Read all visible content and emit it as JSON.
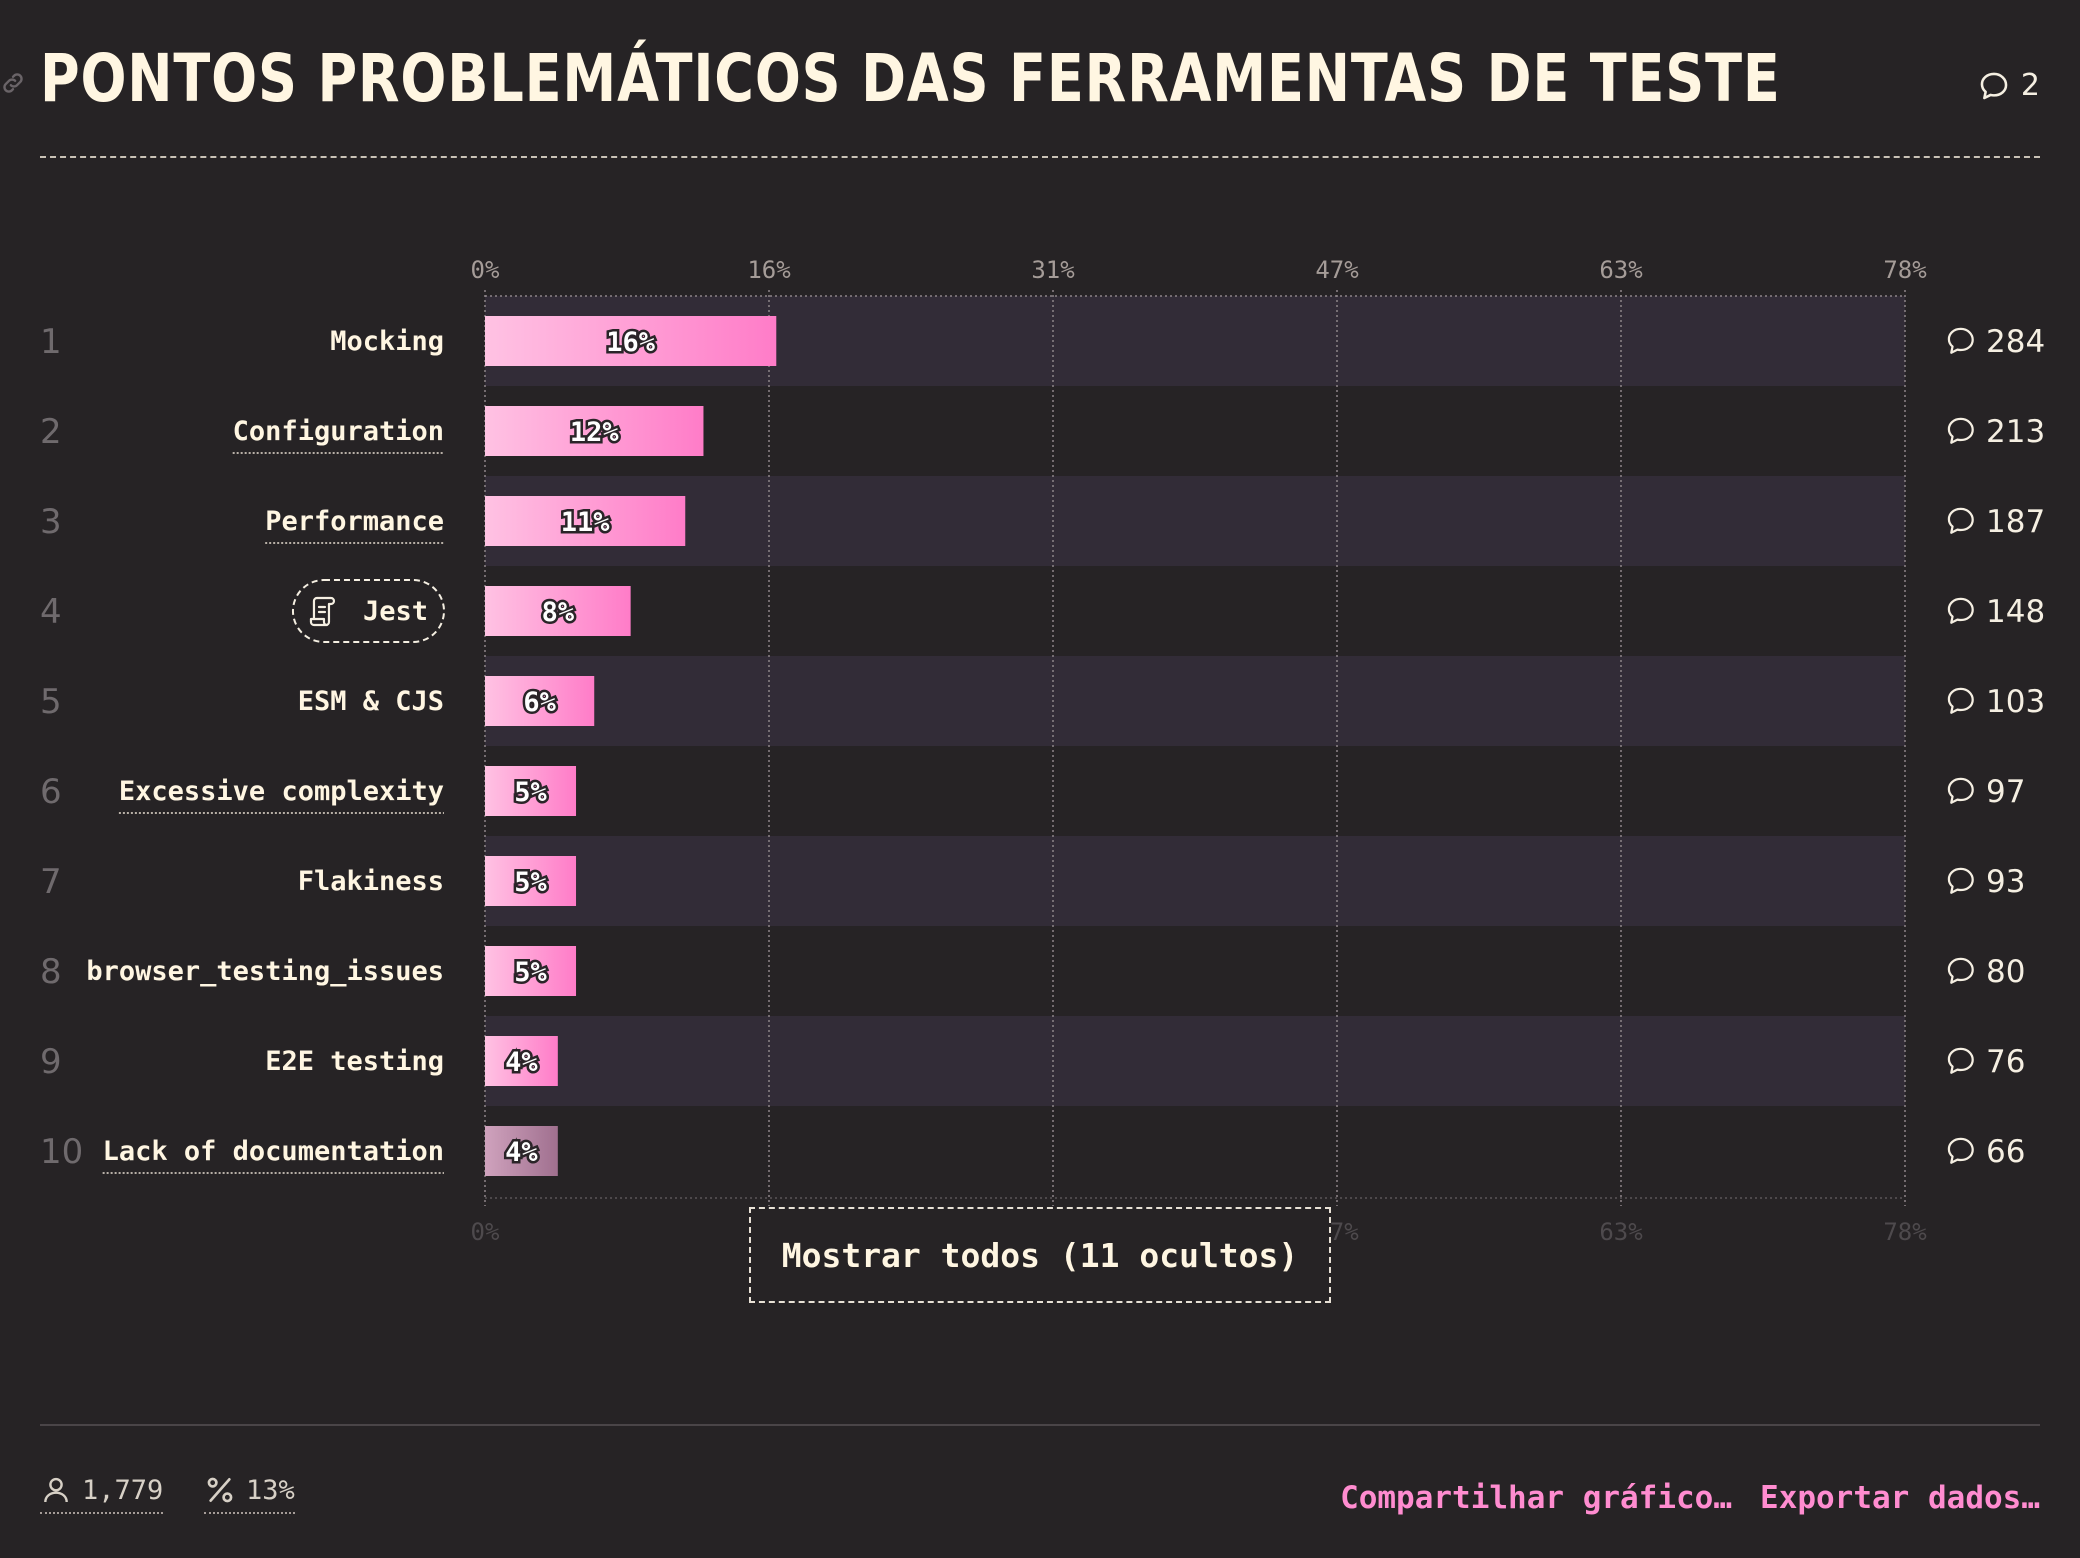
{
  "header": {
    "title": "PONTOS PROBLEMÁTICOS DAS FERRAMENTAS DE TESTE",
    "comment_count": "2"
  },
  "chart_data": {
    "type": "bar",
    "orientation": "horizontal",
    "xlim": [
      0,
      78
    ],
    "x_ticks": [
      "0%",
      "16%",
      "31%",
      "47%",
      "63%",
      "78%"
    ],
    "x_tick_values": [
      0,
      15.6,
      31.2,
      46.8,
      62.4,
      78
    ],
    "grid": true,
    "rows": [
      {
        "rank": "1",
        "label": "Mocking",
        "value": 16,
        "value_label": "16%",
        "comments": "284",
        "underlined": false,
        "pill": false
      },
      {
        "rank": "2",
        "label": "Configuration",
        "value": 12,
        "value_label": "12%",
        "comments": "213",
        "underlined": true,
        "pill": false
      },
      {
        "rank": "3",
        "label": "Performance",
        "value": 11,
        "value_label": "11%",
        "comments": "187",
        "underlined": true,
        "pill": false
      },
      {
        "rank": "4",
        "label": "Jest",
        "value": 8,
        "value_label": "8%",
        "comments": "148",
        "underlined": false,
        "pill": true
      },
      {
        "rank": "5",
        "label": "ESM & CJS",
        "value": 6,
        "value_label": "6%",
        "comments": "103",
        "underlined": false,
        "pill": false
      },
      {
        "rank": "6",
        "label": "Excessive complexity",
        "value": 5,
        "value_label": "5%",
        "comments": "97",
        "underlined": true,
        "pill": false
      },
      {
        "rank": "7",
        "label": "Flakiness",
        "value": 5,
        "value_label": "5%",
        "comments": "93",
        "underlined": false,
        "pill": false
      },
      {
        "rank": "8",
        "label": "browser_testing_issues",
        "value": 5,
        "value_label": "5%",
        "comments": "80",
        "underlined": false,
        "pill": false
      },
      {
        "rank": "9",
        "label": "E2E testing",
        "value": 4,
        "value_label": "4%",
        "comments": "76",
        "underlined": false,
        "pill": false
      },
      {
        "rank": "10",
        "label": "Lack of documentation",
        "value": 4,
        "value_label": "4%",
        "comments": "66",
        "underlined": true,
        "pill": false,
        "muted": true
      }
    ],
    "colors": {
      "bar_start": "#ffc2e3",
      "bar_end": "#ff7cc8",
      "bar_muted_start": "#cfa2bd",
      "bar_muted_end": "#a0708f",
      "row_band": "#322c37",
      "grid": "#8d8589"
    }
  },
  "show_all_label": "Mostrar todos (11 ocultos)",
  "footer": {
    "respondents": "1,779",
    "percent": "13%",
    "share_label": "Compartilhar gráfico…",
    "export_label": "Exportar dados…"
  },
  "colors": {
    "background": "#262325",
    "accent": "#ff8cd0",
    "text": "#fff6e2"
  }
}
